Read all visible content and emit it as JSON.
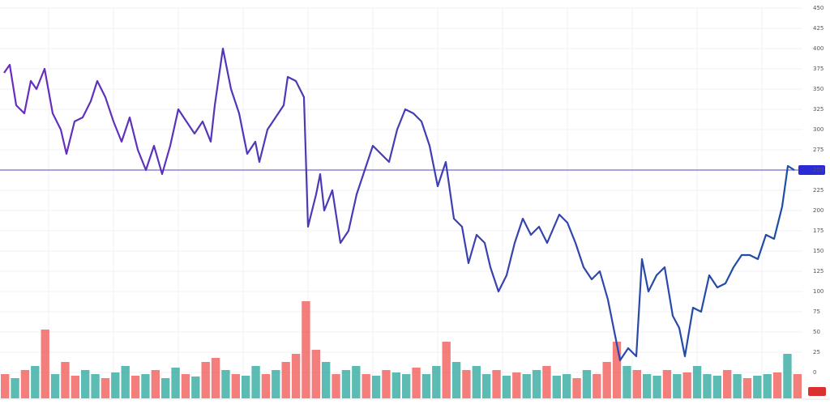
{
  "chart_data": {
    "type": "line",
    "x": [
      5,
      12,
      20,
      30,
      38,
      45,
      55,
      65,
      75,
      82,
      92,
      102,
      112,
      120,
      130,
      140,
      150,
      160,
      170,
      180,
      190,
      200,
      210,
      220,
      230,
      240,
      250,
      260,
      265,
      275,
      285,
      295,
      305,
      315,
      320,
      330,
      340,
      350,
      355,
      365,
      375,
      380,
      390,
      395,
      400,
      410,
      420,
      430,
      440,
      450,
      460,
      470,
      480,
      490,
      500,
      510,
      520,
      530,
      540,
      550,
      560,
      570,
      578,
      588,
      598,
      605,
      615,
      625,
      635,
      645,
      655,
      665,
      675,
      690,
      700,
      710,
      720,
      730,
      740,
      750,
      760,
      765,
      775,
      785,
      792,
      800,
      810,
      820,
      830,
      838,
      845,
      855,
      865,
      875,
      885,
      895,
      905,
      915,
      925,
      935,
      945,
      955,
      965,
      972,
      980
    ],
    "xlim": [
      0,
      990
    ],
    "series": [
      {
        "color": "#6a2cc0",
        "color2": "#1b4fa6",
        "values": [
          370,
          380,
          330,
          320,
          360,
          350,
          375,
          320,
          300,
          270,
          310,
          315,
          335,
          360,
          340,
          310,
          285,
          315,
          275,
          250,
          280,
          245,
          280,
          325,
          310,
          295,
          310,
          285,
          330,
          400,
          350,
          320,
          270,
          285,
          260,
          300,
          315,
          330,
          365,
          360,
          340,
          180,
          220,
          245,
          200,
          225,
          160,
          175,
          220,
          250,
          280,
          270,
          260,
          300,
          325,
          320,
          310,
          280,
          230,
          260,
          190,
          180,
          135,
          170,
          160,
          130,
          100,
          120,
          160,
          190,
          170,
          180,
          160,
          195,
          185,
          160,
          130,
          115,
          125,
          90,
          40,
          15,
          30,
          20,
          140,
          100,
          120,
          130,
          70,
          55,
          20,
          80,
          75,
          120,
          105,
          110,
          130,
          145,
          145,
          140,
          170,
          165,
          205,
          255,
          250
        ]
      }
    ],
    "ylim": [
      0,
      450
    ],
    "yticks": [
      0,
      25,
      50,
      75,
      100,
      125,
      150,
      175,
      200,
      225,
      250,
      275,
      300,
      325,
      350,
      375,
      400,
      425,
      450
    ],
    "hline": {
      "value": 250,
      "color": "#8d82d8"
    },
    "volume": {
      "ylim": [
        0,
        130
      ],
      "colors": [
        "#26a69a",
        "#ef5350"
      ],
      "values": [
        30,
        25,
        35,
        40,
        85,
        30,
        45,
        28,
        35,
        30,
        25,
        32,
        40,
        28,
        30,
        35,
        25,
        38,
        30,
        27,
        45,
        50,
        35,
        30,
        28,
        40,
        30,
        35,
        45,
        55,
        120,
        60,
        45,
        30,
        35,
        40,
        30,
        28,
        35,
        32,
        30,
        38,
        30,
        40,
        70,
        45,
        35,
        40,
        30,
        35,
        28,
        32,
        30,
        35,
        40,
        28,
        30,
        25,
        35,
        30,
        45,
        70,
        40,
        35,
        30,
        28,
        35,
        30,
        32,
        40,
        30,
        28,
        35,
        30,
        25,
        28,
        30,
        32,
        55,
        30
      ],
      "side": [
        1,
        0,
        1,
        0,
        1,
        0,
        1,
        1,
        0,
        0,
        1,
        0,
        0,
        1,
        0,
        1,
        0,
        0,
        1,
        0,
        1,
        1,
        0,
        1,
        0,
        0,
        1,
        0,
        1,
        1,
        1,
        1,
        0,
        1,
        0,
        0,
        1,
        0,
        1,
        0,
        0,
        1,
        0,
        0,
        1,
        0,
        1,
        0,
        0,
        1,
        0,
        1,
        0,
        0,
        1,
        0,
        0,
        1,
        0,
        1,
        1,
        1,
        0,
        1,
        0,
        0,
        1,
        0,
        1,
        0,
        0,
        0,
        1,
        0,
        1,
        0,
        0,
        1,
        0,
        1
      ]
    }
  }
}
